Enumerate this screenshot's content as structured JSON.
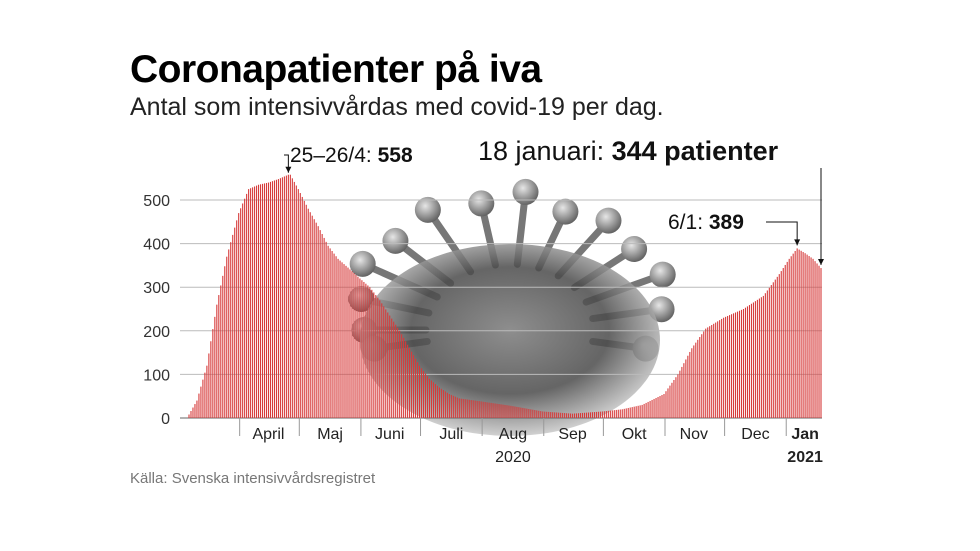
{
  "title": "Coronapatienter på iva",
  "subtitle": "Antal som intensivvårdas med covid-19 per dag.",
  "source": "Källa: Svenska intensivvårdsregistret",
  "annotations": {
    "peak_prefix": "25–26/4: ",
    "peak_value": "558",
    "latest_prefix": "18 januari: ",
    "latest_value": "344 patienter",
    "jan6_prefix": "6/1: ",
    "jan6_value": "389"
  },
  "colors": {
    "bar": "#d63a3a",
    "gridline": "#bbbbbb",
    "text": "#111111"
  },
  "chart_data": {
    "type": "bar",
    "title": "Coronapatienter på iva",
    "subtitle": "Antal som intensivvårdas med covid-19 per dag.",
    "x_start": "2020-03-06",
    "x_end": "2021-01-18",
    "x_tick_labels": [
      "April",
      "Maj",
      "Juni",
      "Juli",
      "Aug",
      "Sep",
      "Okt",
      "Nov",
      "Dec",
      "Jan"
    ],
    "x_year_labels": [
      "2020",
      "2021"
    ],
    "y_ticks": [
      0,
      100,
      200,
      300,
      400,
      500
    ],
    "ylim": [
      0,
      560
    ],
    "grid": true,
    "series": [
      {
        "name": "",
        "anchors": [
          [
            "2020-03-06",
            8
          ],
          [
            "2020-03-10",
            40
          ],
          [
            "2020-03-15",
            120
          ],
          [
            "2020-03-20",
            260
          ],
          [
            "2020-03-25",
            370
          ],
          [
            "2020-03-31",
            470
          ],
          [
            "2020-04-05",
            525
          ],
          [
            "2020-04-10",
            535
          ],
          [
            "2020-04-15",
            540
          ],
          [
            "2020-04-20",
            548
          ],
          [
            "2020-04-25",
            558
          ],
          [
            "2020-04-26",
            558
          ],
          [
            "2020-04-30",
            525
          ],
          [
            "2020-05-05",
            480
          ],
          [
            "2020-05-10",
            440
          ],
          [
            "2020-05-15",
            395
          ],
          [
            "2020-05-20",
            365
          ],
          [
            "2020-05-25",
            345
          ],
          [
            "2020-05-31",
            320
          ],
          [
            "2020-06-05",
            300
          ],
          [
            "2020-06-10",
            270
          ],
          [
            "2020-06-15",
            235
          ],
          [
            "2020-06-20",
            200
          ],
          [
            "2020-06-25",
            160
          ],
          [
            "2020-06-30",
            120
          ],
          [
            "2020-07-05",
            90
          ],
          [
            "2020-07-10",
            70
          ],
          [
            "2020-07-15",
            55
          ],
          [
            "2020-07-20",
            45
          ],
          [
            "2020-07-31",
            38
          ],
          [
            "2020-08-15",
            28
          ],
          [
            "2020-08-31",
            15
          ],
          [
            "2020-09-15",
            10
          ],
          [
            "2020-09-30",
            15
          ],
          [
            "2020-10-10",
            20
          ],
          [
            "2020-10-20",
            30
          ],
          [
            "2020-10-31",
            55
          ],
          [
            "2020-11-07",
            100
          ],
          [
            "2020-11-14",
            160
          ],
          [
            "2020-11-21",
            205
          ],
          [
            "2020-11-30",
            230
          ],
          [
            "2020-12-10",
            250
          ],
          [
            "2020-12-20",
            280
          ],
          [
            "2020-12-28",
            330
          ],
          [
            "2021-01-02",
            365
          ],
          [
            "2021-01-06",
            389
          ],
          [
            "2021-01-10",
            378
          ],
          [
            "2021-01-14",
            365
          ],
          [
            "2021-01-18",
            344
          ]
        ]
      }
    ]
  }
}
